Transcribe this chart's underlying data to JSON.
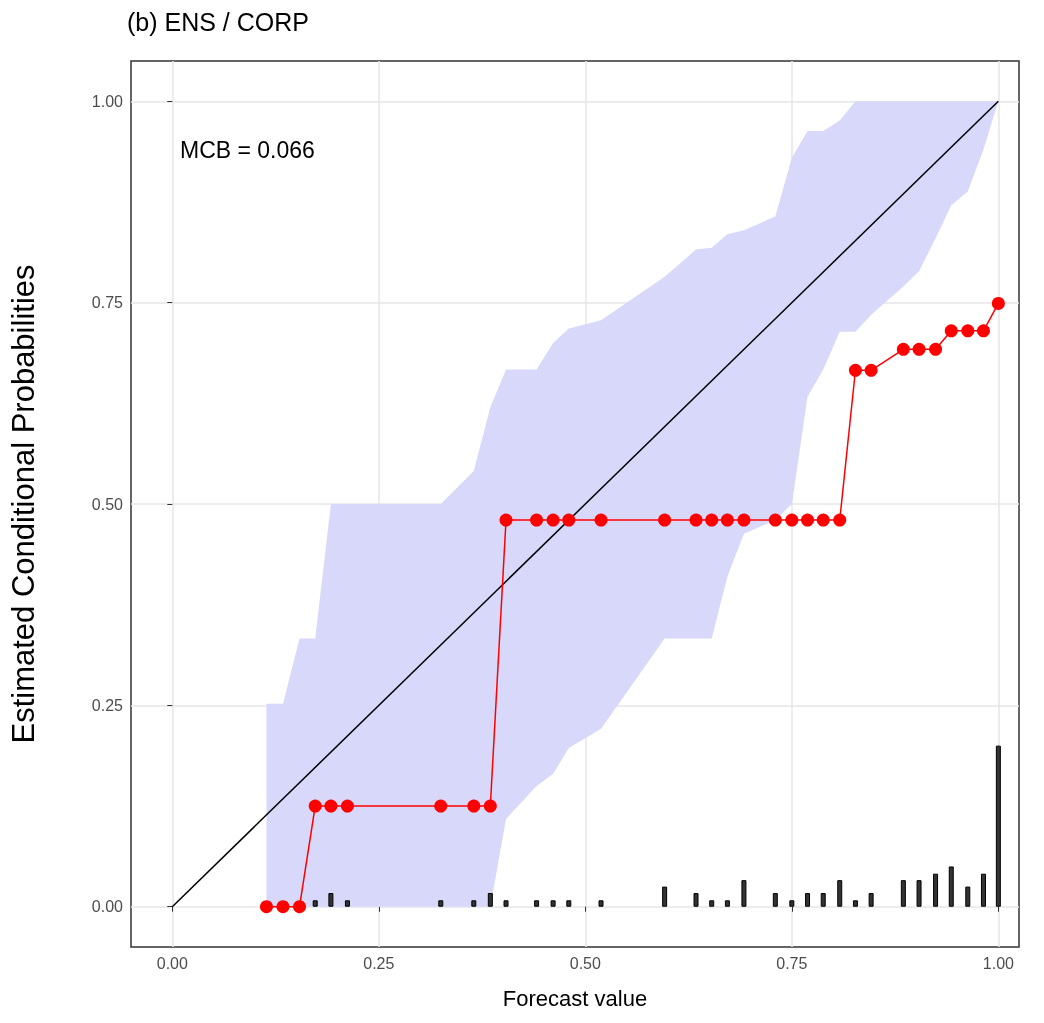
{
  "chart_data": {
    "type": "line",
    "title": "(b) ENS / CORP",
    "xlabel": "Forecast value",
    "ylabel": "Estimated Conditional Probabilities",
    "annotations": [
      "MCB = 0.066"
    ],
    "xlim": [
      -0.05,
      1.025
    ],
    "ylim": [
      -0.05,
      1.05
    ],
    "xticks": [
      {
        "value": 0,
        "label": "0.00"
      },
      {
        "value": 0.25,
        "label": "0.25"
      },
      {
        "value": 0.5,
        "label": "0.50"
      },
      {
        "value": 0.75,
        "label": "0.75"
      },
      {
        "value": 1,
        "label": "1.00"
      }
    ],
    "yticks": [
      {
        "value": 0,
        "label": "0.00"
      },
      {
        "value": 0.25,
        "label": "0.25"
      },
      {
        "value": 0.5,
        "label": "0.50"
      },
      {
        "value": 0.75,
        "label": "0.75"
      },
      {
        "value": 1,
        "label": "1.00"
      }
    ],
    "grid": true,
    "series": [
      {
        "type": "bar",
        "color": "#333333",
        "x": [
          0.173,
          0.192,
          0.212,
          0.325,
          0.365,
          0.385,
          0.404,
          0.441,
          0.461,
          0.48,
          0.519,
          0.596,
          0.634,
          0.653,
          0.672,
          0.692,
          0.73,
          0.75,
          0.769,
          0.788,
          0.808,
          0.827,
          0.846,
          0.885,
          0.904,
          0.924,
          0.943,
          0.963,
          0.982,
          1.0
        ],
        "values": [
          0.008,
          0.017,
          0.008,
          0.008,
          0.008,
          0.017,
          0.008,
          0.008,
          0.008,
          0.008,
          0.008,
          0.025,
          0.017,
          0.008,
          0.008,
          0.033,
          0.017,
          0.008,
          0.017,
          0.017,
          0.033,
          0.008,
          0.017,
          0.033,
          0.033,
          0.041,
          0.05,
          0.025,
          0.041,
          0.2
        ]
      },
      {
        "color": "#000000",
        "marker": "none",
        "x": [
          0,
          1
        ],
        "values": [
          0,
          1
        ]
      },
      {
        "color": "#ff0000",
        "marker": "circle",
        "x": [
          0.114,
          0.134,
          0.154,
          0.173,
          0.192,
          0.212,
          0.325,
          0.365,
          0.385,
          0.404,
          0.441,
          0.461,
          0.48,
          0.519,
          0.596,
          0.634,
          0.653,
          0.672,
          0.692,
          0.73,
          0.75,
          0.769,
          0.788,
          0.808,
          0.827,
          0.846,
          0.885,
          0.904,
          0.924,
          0.943,
          0.963,
          0.982,
          1.0
        ],
        "values": [
          0,
          0,
          0,
          0.125,
          0.125,
          0.125,
          0.125,
          0.125,
          0.125,
          0.48,
          0.48,
          0.48,
          0.48,
          0.48,
          0.48,
          0.48,
          0.48,
          0.48,
          0.48,
          0.48,
          0.48,
          0.48,
          0.48,
          0.48,
          0.666,
          0.666,
          0.692,
          0.692,
          0.692,
          0.715,
          0.715,
          0.715,
          0.749
        ],
        "lower": [
          0,
          0,
          0,
          0,
          0,
          0,
          0,
          0,
          0,
          0.109,
          0.15,
          0.165,
          0.197,
          0.221,
          0.333,
          0.333,
          0.333,
          0.41,
          0.463,
          0.48,
          0.5,
          0.633,
          0.667,
          0.714,
          0.714,
          0.735,
          0.77,
          0.789,
          0.83,
          0.871,
          0.888,
          0.94,
          1
        ],
        "upper": [
          0.252,
          0.252,
          0.333,
          0.333,
          0.5,
          0.5,
          0.5,
          0.541,
          0.62,
          0.667,
          0.667,
          0.7,
          0.718,
          0.728,
          0.782,
          0.816,
          0.818,
          0.835,
          0.84,
          0.857,
          0.93,
          0.963,
          0.963,
          0.976,
          1,
          1,
          1,
          1,
          1,
          1,
          1,
          1,
          1
        ]
      }
    ]
  }
}
